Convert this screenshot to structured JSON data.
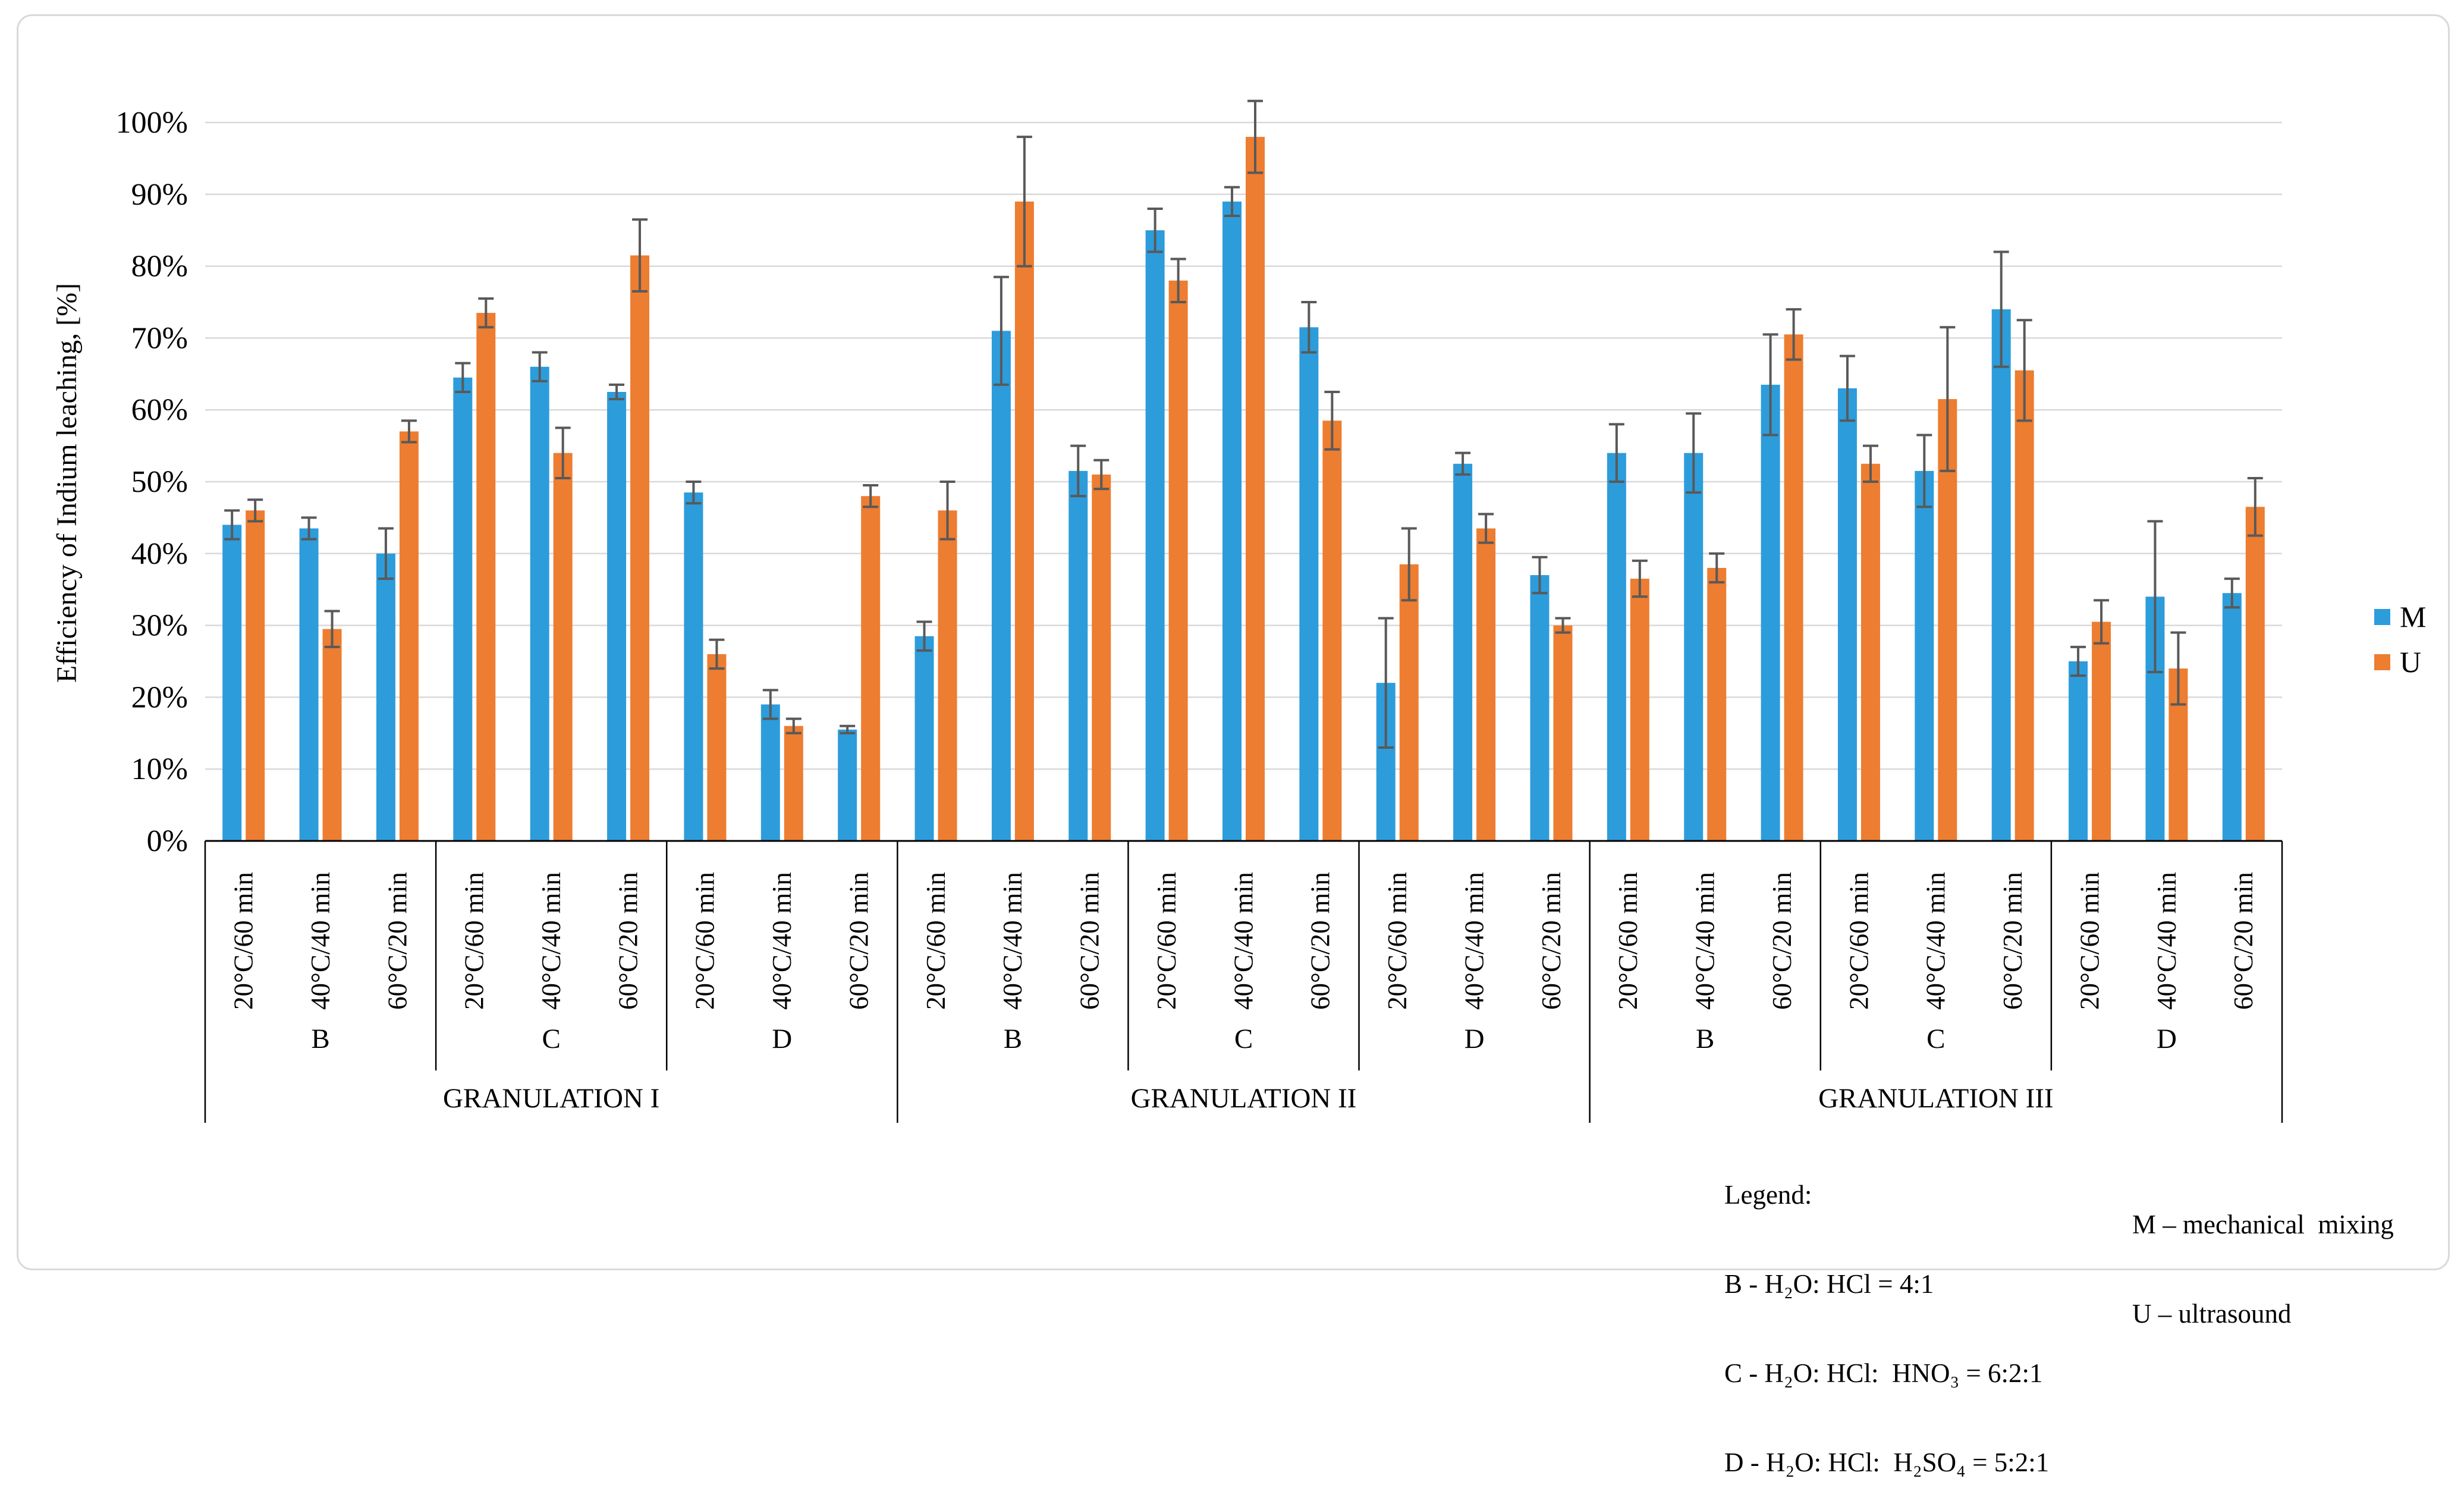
{
  "figure": {
    "background": "#FFFFFF",
    "border_color": "#D9D9D9"
  },
  "chart_data": {
    "type": "bar",
    "title": "",
    "ylabel": "Efficiency of Indium leaching, [%]",
    "xlabel": "",
    "ylim": [
      0,
      100
    ],
    "ytick_step": 10,
    "ytick_labels": [
      "0%",
      "10%",
      "20%",
      "30%",
      "40%",
      "50%",
      "60%",
      "70%",
      "80%",
      "90%",
      "100%"
    ],
    "grid": "horizontal",
    "gridline_color": "#D9D9D9",
    "error_bar_color": "#595959",
    "legend_position": "right",
    "categories": [
      "20°C/60 min",
      "40°C/40 min",
      "60°C/20 min",
      "20°C/60 min",
      "40°C/40 min",
      "60°C/20 min",
      "20°C/60 min",
      "40°C/40 min",
      "60°C/20 min",
      "20°C/60 min",
      "40°C/40 min",
      "60°C/20 min",
      "20°C/60 min",
      "40°C/40 min",
      "60°C/20 min",
      "20°C/60 min",
      "40°C/40 min",
      "60°C/20 min",
      "20°C/60 min",
      "40°C/40 min",
      "60°C/20 min",
      "20°C/60 min",
      "40°C/40 min",
      "60°C/20 min",
      "20°C/60 min",
      "40°C/40 min",
      "60°C/20 min"
    ],
    "subgroups": [
      {
        "label": "B",
        "span": 3
      },
      {
        "label": "C",
        "span": 3
      },
      {
        "label": "D",
        "span": 3
      },
      {
        "label": "B",
        "span": 3
      },
      {
        "label": "C",
        "span": 3
      },
      {
        "label": "D",
        "span": 3
      },
      {
        "label": "B",
        "span": 3
      },
      {
        "label": "C",
        "span": 3
      },
      {
        "label": "D",
        "span": 3
      }
    ],
    "granulations": [
      {
        "label": "GRANULATION I",
        "span": 9
      },
      {
        "label": "GRANULATION II",
        "span": 9
      },
      {
        "label": "GRANULATION III",
        "span": 9
      }
    ],
    "series": [
      {
        "name": "M",
        "color": "#2D9CDB",
        "values": [
          44,
          43.5,
          40,
          64.5,
          66,
          62.5,
          48.5,
          19,
          15.5,
          28.5,
          71,
          51.5,
          85,
          89,
          71.5,
          22,
          52.5,
          37,
          54,
          54,
          63.5,
          63,
          51.5,
          74,
          25,
          34,
          34.5
        ],
        "errors": [
          2,
          1.5,
          3.5,
          2,
          2,
          1,
          1.5,
          2,
          0.5,
          2,
          7.5,
          3.5,
          3,
          2,
          3.5,
          9,
          1.5,
          2.5,
          4,
          5.5,
          7,
          4.5,
          5,
          8,
          2,
          10.5,
          2
        ]
      },
      {
        "name": "U",
        "color": "#ED7D31",
        "values": [
          46,
          29.5,
          57,
          73.5,
          54,
          81.5,
          26,
          16,
          48,
          46,
          89,
          51,
          78,
          98,
          58.5,
          38.5,
          43.5,
          30,
          36.5,
          38,
          70.5,
          52.5,
          61.5,
          65.5,
          30.5,
          24,
          46.5
        ],
        "errors": [
          1.5,
          2.5,
          1.5,
          2,
          3.5,
          5,
          2,
          1,
          1.5,
          4,
          9,
          2,
          3,
          5,
          4,
          5,
          2,
          1,
          2.5,
          2,
          3.5,
          2.5,
          10,
          7,
          3,
          5,
          4
        ]
      }
    ]
  },
  "series_legend": {
    "items": [
      {
        "label": "M",
        "color": "#2D9CDB"
      },
      {
        "label": "U",
        "color": "#ED7D31"
      }
    ]
  },
  "legend_box": {
    "title": "Legend:",
    "lines": [
      "B - H₂O: HCl = 4:1",
      "C - H₂O: HCl:  HNO₃ = 6:2:1",
      "D - H₂O: HCl:  H₂SO₄ = 5:2:1"
    ],
    "methods": [
      "M – mechanical  mixing",
      "U – ultrasound"
    ]
  }
}
